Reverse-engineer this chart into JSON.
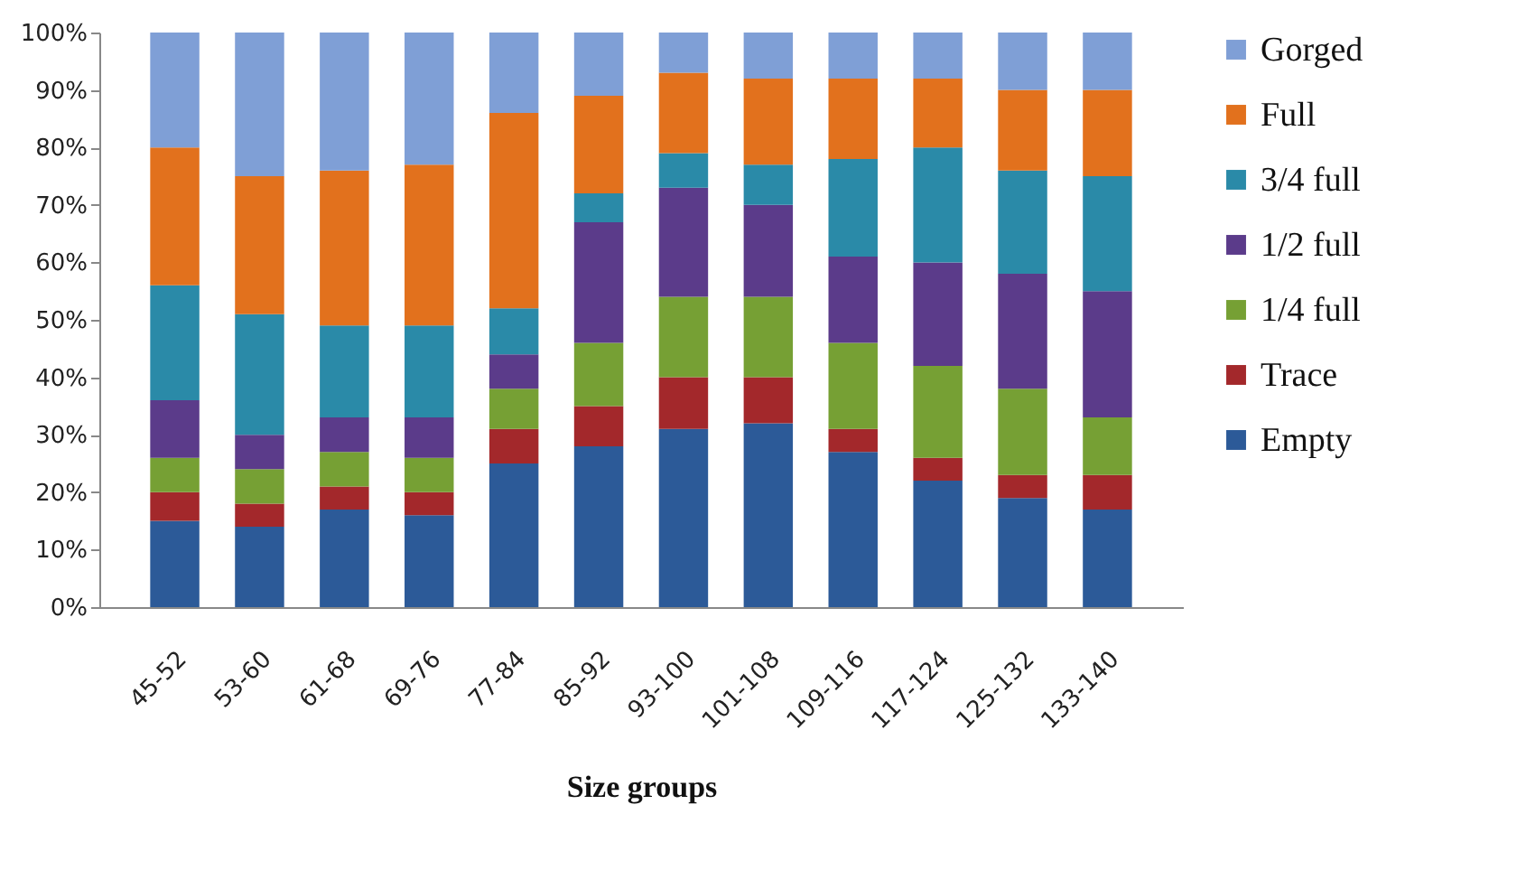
{
  "chart_data": {
    "type": "bar",
    "stacked": true,
    "xlabel": "Size groups",
    "categories": [
      "45-52",
      "53-60",
      "61-68",
      "69-76",
      "77-84",
      "85-92",
      "93-100",
      "101-108",
      "109-116",
      "117-124",
      "125-132",
      "133-140"
    ],
    "series": [
      {
        "name": "Empty",
        "color": "#2c5a98",
        "values": [
          15,
          14,
          17,
          16,
          25,
          28,
          31,
          32,
          27,
          22,
          19,
          17
        ]
      },
      {
        "name": "Trace",
        "color": "#a3282b",
        "values": [
          5,
          4,
          4,
          4,
          6,
          7,
          9,
          8,
          4,
          4,
          4,
          6
        ]
      },
      {
        "name": "1/4 full",
        "color": "#76a034",
        "values": [
          6,
          6,
          6,
          6,
          7,
          11,
          14,
          14,
          15,
          16,
          15,
          10
        ]
      },
      {
        "name": "1/2 full",
        "color": "#5b3b8a",
        "values": [
          10,
          6,
          6,
          7,
          6,
          21,
          19,
          16,
          15,
          18,
          20,
          22
        ]
      },
      {
        "name": "3/4 full",
        "color": "#2a8aa8",
        "values": [
          20,
          21,
          16,
          16,
          8,
          5,
          6,
          7,
          17,
          20,
          18,
          20
        ]
      },
      {
        "name": "Full",
        "color": "#e2711d",
        "values": [
          24,
          24,
          27,
          28,
          34,
          17,
          14,
          15,
          14,
          12,
          14,
          15
        ]
      },
      {
        "name": "Gorged",
        "color": "#7f9fd6",
        "values": [
          20,
          25,
          24,
          23,
          14,
          11,
          7,
          8,
          8,
          8,
          10,
          10
        ]
      }
    ],
    "ylim": [
      0,
      100
    ],
    "yticks": [
      {
        "value": 0,
        "label": "0%"
      },
      {
        "value": 10,
        "label": "10%"
      },
      {
        "value": 20,
        "label": "20%"
      },
      {
        "value": 30,
        "label": "30%"
      },
      {
        "value": 40,
        "label": "40%"
      },
      {
        "value": 50,
        "label": "50%"
      },
      {
        "value": 60,
        "label": "60%"
      },
      {
        "value": 70,
        "label": "70%"
      },
      {
        "value": 80,
        "label": "80%"
      },
      {
        "value": 90,
        "label": "90%"
      },
      {
        "value": 100,
        "label": "100%"
      }
    ],
    "grid": false,
    "legend": "right"
  }
}
